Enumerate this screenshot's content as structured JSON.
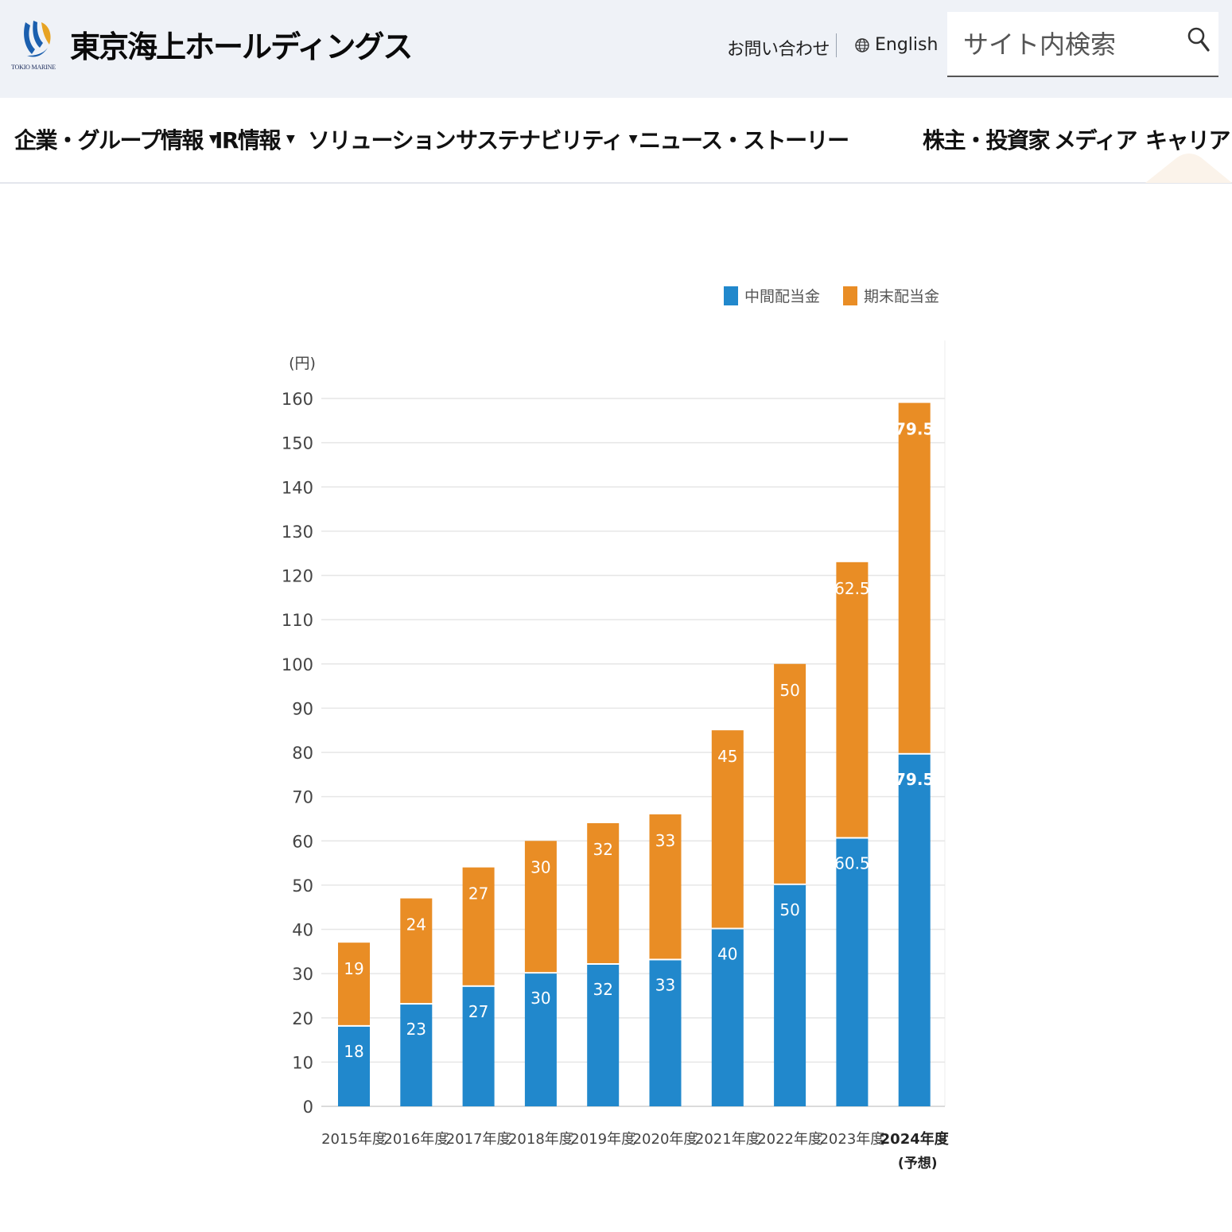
{
  "header": {
    "logo_text": "TOKIO MARINE",
    "brand": "東京海上ホールディングス",
    "contact_label": "お問い合わせ",
    "english_label": "English",
    "search_placeholder": "サイト内検索"
  },
  "nav": {
    "items": [
      {
        "label": "企業・グループ情報",
        "has_menu": true
      },
      {
        "label": "IR情報",
        "has_menu": true
      },
      {
        "label": "ソリューション",
        "has_menu": false
      },
      {
        "label": "サステナビリティ",
        "has_menu": true
      },
      {
        "label": "ニュース・ストーリー",
        "has_menu": false
      }
    ],
    "right_items": [
      {
        "label": "株主・投資家"
      },
      {
        "label": "メディア"
      },
      {
        "label": "キャリア"
      }
    ],
    "caret": "▼"
  },
  "colors": {
    "interim": "#2188cc",
    "year_end": "#e98d25",
    "grid": "#e6e6e6"
  },
  "chart_data": {
    "type": "bar",
    "stacked": true,
    "unit_label": "(円)",
    "ylim": [
      0,
      160
    ],
    "yticks": [
      0,
      10,
      20,
      30,
      40,
      50,
      60,
      70,
      80,
      90,
      100,
      110,
      120,
      130,
      140,
      150,
      160
    ],
    "grid": true,
    "legend_position": "top-right",
    "categories": [
      "2015年度",
      "2016年度",
      "2017年度",
      "2018年度",
      "2019年度",
      "2020年度",
      "2021年度",
      "2022年度",
      "2023年度",
      "2024年度"
    ],
    "category_notes": [
      "",
      "",
      "",
      "",
      "",
      "",
      "",
      "",
      "",
      "(予想)"
    ],
    "series": [
      {
        "name": "中間配当金",
        "color": "#2188cc",
        "values": [
          18,
          23,
          27,
          30,
          32,
          33,
          40,
          50,
          60.5,
          79.5
        ],
        "labels": [
          "18",
          "23",
          "27",
          "30",
          "32",
          "33",
          "40",
          "50",
          "60.5",
          "79.5"
        ]
      },
      {
        "name": "期末配当金",
        "color": "#e98d25",
        "values": [
          19,
          24,
          27,
          30,
          32,
          33,
          45,
          50,
          62.5,
          79.5
        ],
        "labels": [
          "19",
          "24",
          "27",
          "30",
          "32",
          "33",
          "45",
          "50",
          "62.5",
          "79.5"
        ]
      }
    ]
  }
}
